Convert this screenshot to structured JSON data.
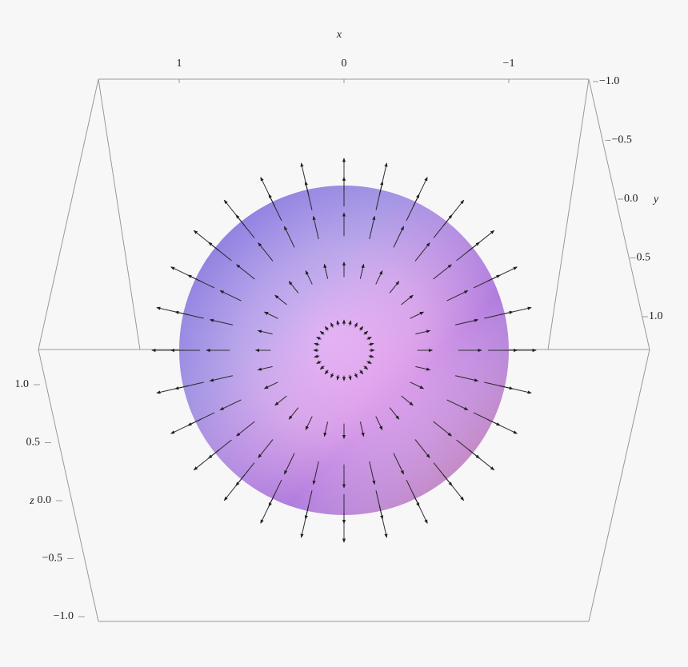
{
  "chart_data": {
    "type": "vector-field-3d",
    "x_label": "x",
    "y_label": "y",
    "z_label": "z",
    "xticks": [
      1,
      0,
      {
        "value": -1,
        "label": "−1"
      }
    ],
    "yticks": [
      {
        "value": -1,
        "label": "−1.0"
      },
      {
        "value": -0.5,
        "label": "−0.5"
      },
      {
        "value": 0,
        "label": "0.0"
      },
      {
        "value": 0.5,
        "label": "0.5"
      },
      {
        "value": 1,
        "label": "1.0"
      }
    ],
    "zticks": [
      {
        "value": 1,
        "label": "1.0"
      },
      {
        "value": 0.5,
        "label": "0.5"
      },
      {
        "value": 0,
        "label": "0.0"
      },
      {
        "value": -0.5,
        "label": "−0.5"
      },
      {
        "value": -1,
        "label": "−1.0"
      }
    ]
  }
}
